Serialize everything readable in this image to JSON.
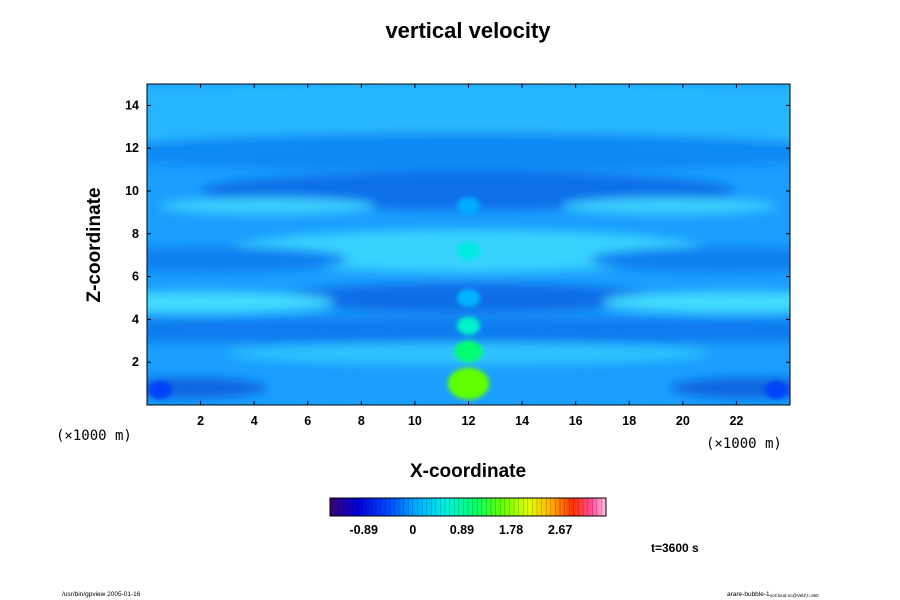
{
  "chart_data": {
    "type": "heatmap",
    "title": "vertical velocity",
    "xlabel": "X-coordinate",
    "ylabel": "Z-coordinate",
    "x_scale_note": "(×1000 m)",
    "y_scale_note": "(×1000 m)",
    "xlim": [
      0,
      24
    ],
    "ylim": [
      0,
      15
    ],
    "x_ticks": [
      2,
      4,
      6,
      8,
      10,
      12,
      14,
      16,
      18,
      20,
      22
    ],
    "x_tick_labels": [
      "2",
      "4",
      "6",
      "8",
      "10",
      "12",
      "14",
      "16",
      "18",
      "20",
      "22"
    ],
    "y_ticks": [
      2,
      4,
      6,
      8,
      10,
      12,
      14
    ],
    "y_tick_labels": [
      "2",
      "4",
      "6",
      "8",
      "10",
      "12",
      "14"
    ],
    "colorbar": {
      "range": [
        -1.5,
        3.5
      ],
      "ticks": [
        -0.89,
        0,
        0.89,
        1.78,
        2.67
      ],
      "tick_labels": [
        "-0.89",
        "0",
        "0.89",
        "1.78",
        "2.67"
      ]
    },
    "features": [
      {
        "x": 12,
        "z": 1.0,
        "value": 1.6
      },
      {
        "x": 12,
        "z": 2.5,
        "value": 1.1
      },
      {
        "x": 12,
        "z": 3.7,
        "value": 0.7
      },
      {
        "x": 12,
        "z": 7.2,
        "value": 0.55
      },
      {
        "x": 12,
        "z": 5.0,
        "value": 0.1
      },
      {
        "x": 12,
        "z": 9.3,
        "value": 0.05
      },
      {
        "x": 0.5,
        "z": 0.7,
        "value": -0.5
      },
      {
        "x": 23.5,
        "z": 0.7,
        "value": -0.5
      }
    ],
    "background_value": 0.3
  },
  "time_label": "t=3600 s",
  "footer": {
    "left": "/usr/bin/gpview 2005-01-16",
    "right_main": "arare-bubble-1",
    "right_sub": "noCloud.nc@VelZ,t=360"
  }
}
